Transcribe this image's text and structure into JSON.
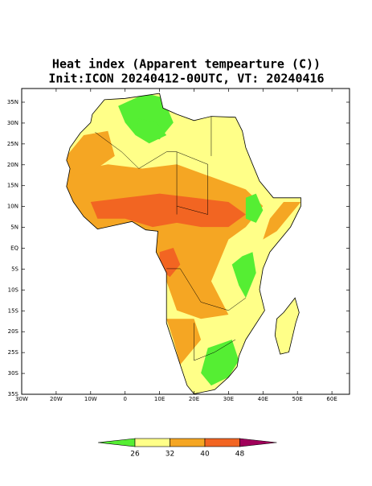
{
  "title": "Heat index (Apparent tempearture (C))",
  "subtitle": "Init:ICON 20240412-00UTC, VT: 20240416",
  "map": {
    "lat_ticks": [
      "35N",
      "30N",
      "25N",
      "20N",
      "15N",
      "10N",
      "5N",
      "EQ",
      "5S",
      "10S",
      "15S",
      "20S",
      "25S",
      "30S",
      "35S"
    ],
    "lon_ticks": [
      "30W",
      "20W",
      "10W",
      "0",
      "10E",
      "20E",
      "30E",
      "40E",
      "50E",
      "60E"
    ]
  },
  "colorbar": {
    "levels": [
      26,
      32,
      40,
      48
    ],
    "colors": [
      "#55ee33",
      "#ffff88",
      "#f5a623",
      "#f26522",
      "#a0005a"
    ]
  }
}
